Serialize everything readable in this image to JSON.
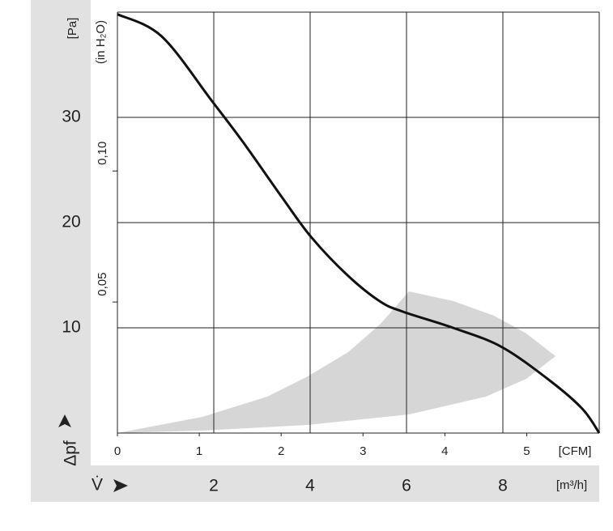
{
  "chart_data": {
    "type": "line",
    "color": "#111111",
    "x": [
      0,
      0.54,
      1.16,
      1.53,
      2.02,
      2.37,
      2.81,
      3.21,
      3.5,
      4.1,
      4.69,
      5.28,
      5.68,
      5.886
    ],
    "values": [
      39.8,
      37.7,
      31.5,
      27.7,
      22.3,
      18.6,
      15.0,
      12.5,
      11.5,
      10.0,
      8.2,
      5.0,
      2.3,
      0
    ],
    "xlim": [
      0,
      5.886
    ],
    "xticks": [
      0,
      1,
      2,
      3,
      4,
      5
    ],
    "xlabel": "[CFM]",
    "x2lim": [
      0,
      10
    ],
    "x2ticks": [
      2,
      4,
      6,
      8
    ],
    "x2label": "[m³/h]",
    "x2symbol": "V̇",
    "ylim": [
      0,
      40
    ],
    "yticks": [
      10,
      20,
      30
    ],
    "ylabel": "[Pa]",
    "ysymbol": "Δpf",
    "y2lim": [
      0,
      0.1606
    ],
    "y2ticks": [
      {
        "value": 0.05,
        "label": "0,05"
      },
      {
        "value": 0.1,
        "label": "0,10"
      }
    ],
    "y2label": "(in H₂O)",
    "grid": true
  }
}
